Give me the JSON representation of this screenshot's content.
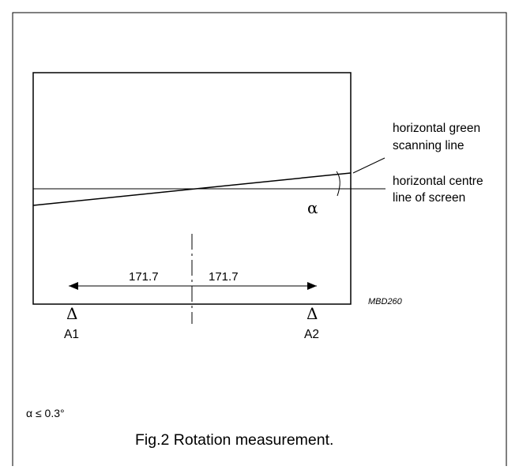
{
  "labels": {
    "green_line_1": "horizontal green",
    "green_line_2": "scanning line",
    "centre_line_1": "horizontal centre",
    "centre_line_2": "line of screen",
    "angle_symbol": "α",
    "dim_left": "171.7",
    "dim_right": "171.7",
    "drawing_code": "MBD260",
    "marker_left_symbol": "Δ",
    "marker_left_label": "A1",
    "marker_right_symbol": "Δ",
    "marker_right_label": "A2",
    "condition": "α ≤ 0.3°",
    "caption": "Fig.2  Rotation measurement."
  }
}
